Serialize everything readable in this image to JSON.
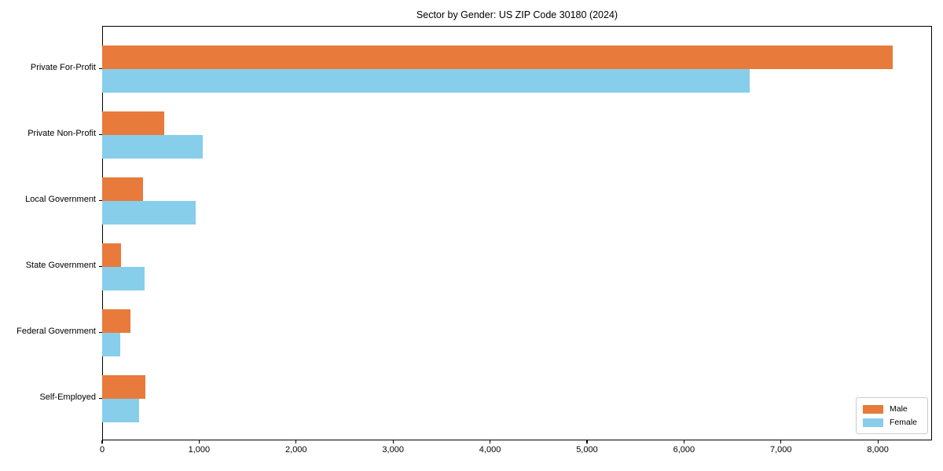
{
  "chart_data": {
    "type": "bar",
    "orientation": "horizontal",
    "title": "Sector by Gender: US ZIP Code 30180 (2024)",
    "categories": [
      "Private For-Profit",
      "Private Non-Profit",
      "Local Government",
      "State Government",
      "Federal Government",
      "Self-Employed"
    ],
    "series": [
      {
        "name": "Male",
        "color": "#E87A3B",
        "values": [
          8150,
          640,
          420,
          195,
          290,
          445
        ]
      },
      {
        "name": "Female",
        "color": "#87CEEB",
        "values": [
          6680,
          1040,
          965,
          440,
          185,
          380
        ]
      }
    ],
    "xlim": [
      0,
      8558
    ],
    "xticks": [
      0,
      1000,
      2000,
      3000,
      4000,
      5000,
      6000,
      7000,
      8000
    ],
    "xtick_labels": [
      "0",
      "1,000",
      "2,000",
      "3,000",
      "4,000",
      "5,000",
      "6,000",
      "7,000",
      "8,000"
    ],
    "ylabel": "",
    "xlabel": "",
    "grid": false,
    "legend": {
      "position": "lower right",
      "items": [
        "Male",
        "Female"
      ]
    },
    "colors": {
      "axis": "#000000",
      "background": "#FFFFFF",
      "legend_border": "#CCCCCC"
    }
  }
}
